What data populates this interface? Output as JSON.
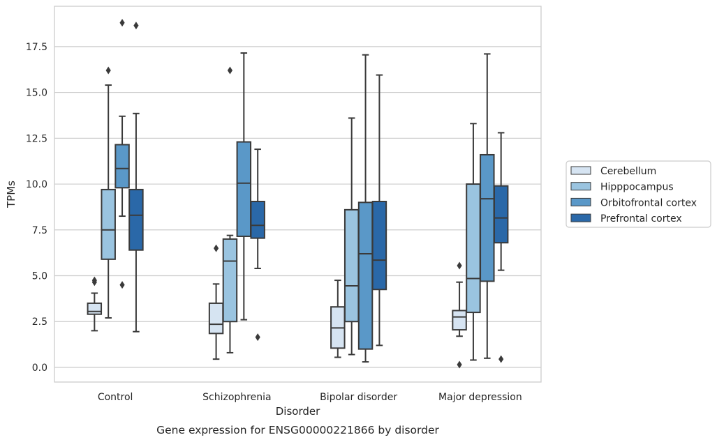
{
  "chart_data": {
    "type": "box",
    "caption": "Gene expression for ENSG00000221866 by disorder",
    "xlabel": "Disorder",
    "ylabel": "TPMs",
    "ylim": [
      -0.8,
      19.7
    ],
    "yticks": [
      0.0,
      2.5,
      5.0,
      7.5,
      10.0,
      12.5,
      15.0,
      17.5
    ],
    "ytick_labels": [
      "0.0",
      "2.5",
      "5.0",
      "7.5",
      "10.0",
      "12.5",
      "15.0",
      "17.5"
    ],
    "grid": "horizontal",
    "legend_position": "right",
    "categories": [
      "Control",
      "Schizophrenia",
      "Bipolar disorder",
      "Major depression"
    ],
    "series": [
      {
        "name": "Cerebellum",
        "color": "#d6e4f2",
        "boxes": [
          {
            "whislo": 2.0,
            "q1": 2.9,
            "med": 3.05,
            "q3": 3.5,
            "whishi": 4.05,
            "fliers": [
              4.65,
              4.75
            ]
          },
          {
            "whislo": 0.45,
            "q1": 1.85,
            "med": 2.35,
            "q3": 3.5,
            "whishi": 4.55,
            "fliers": [
              6.5
            ]
          },
          {
            "whislo": 0.55,
            "q1": 1.05,
            "med": 2.15,
            "q3": 3.3,
            "whishi": 4.75,
            "fliers": []
          },
          {
            "whislo": 1.7,
            "q1": 2.05,
            "med": 2.75,
            "q3": 3.1,
            "whishi": 4.65,
            "fliers": [
              5.55,
              0.15
            ]
          }
        ]
      },
      {
        "name": "Hipppocampus",
        "color": "#9ac4e0",
        "boxes": [
          {
            "whislo": 2.7,
            "q1": 5.9,
            "med": 7.5,
            "q3": 9.7,
            "whishi": 15.4,
            "fliers": [
              16.2
            ]
          },
          {
            "whislo": 0.8,
            "q1": 2.5,
            "med": 5.8,
            "q3": 7.0,
            "whishi": 7.2,
            "fliers": [
              16.2
            ]
          },
          {
            "whislo": 0.7,
            "q1": 2.5,
            "med": 4.45,
            "q3": 8.6,
            "whishi": 13.6,
            "fliers": []
          },
          {
            "whislo": 0.4,
            "q1": 3.0,
            "med": 4.85,
            "q3": 10.0,
            "whishi": 13.3,
            "fliers": []
          }
        ]
      },
      {
        "name": "Orbitofrontal cortex",
        "color": "#5a98c8",
        "boxes": [
          {
            "whislo": 8.25,
            "q1": 9.8,
            "med": 10.85,
            "q3": 12.15,
            "whishi": 13.7,
            "fliers": [
              18.8,
              4.5
            ]
          },
          {
            "whislo": 2.6,
            "q1": 7.15,
            "med": 10.05,
            "q3": 12.3,
            "whishi": 17.15,
            "fliers": []
          },
          {
            "whislo": 0.3,
            "q1": 1.0,
            "med": 6.2,
            "q3": 9.0,
            "whishi": 17.05,
            "fliers": []
          },
          {
            "whislo": 0.5,
            "q1": 4.7,
            "med": 9.2,
            "q3": 11.6,
            "whishi": 17.1,
            "fliers": []
          }
        ]
      },
      {
        "name": "Prefrontal cortex",
        "color": "#2a68a8",
        "boxes": [
          {
            "whislo": 1.95,
            "q1": 6.4,
            "med": 8.3,
            "q3": 9.7,
            "whishi": 13.85,
            "fliers": [
              18.65
            ]
          },
          {
            "whislo": 5.4,
            "q1": 7.05,
            "med": 7.75,
            "q3": 9.05,
            "whishi": 11.9,
            "fliers": [
              1.65
            ]
          },
          {
            "whislo": 1.2,
            "q1": 4.25,
            "med": 5.85,
            "q3": 9.05,
            "whishi": 15.95,
            "fliers": []
          },
          {
            "whislo": 5.3,
            "q1": 6.8,
            "med": 8.15,
            "q3": 9.9,
            "whishi": 12.8,
            "fliers": [
              0.45
            ]
          }
        ]
      }
    ]
  }
}
